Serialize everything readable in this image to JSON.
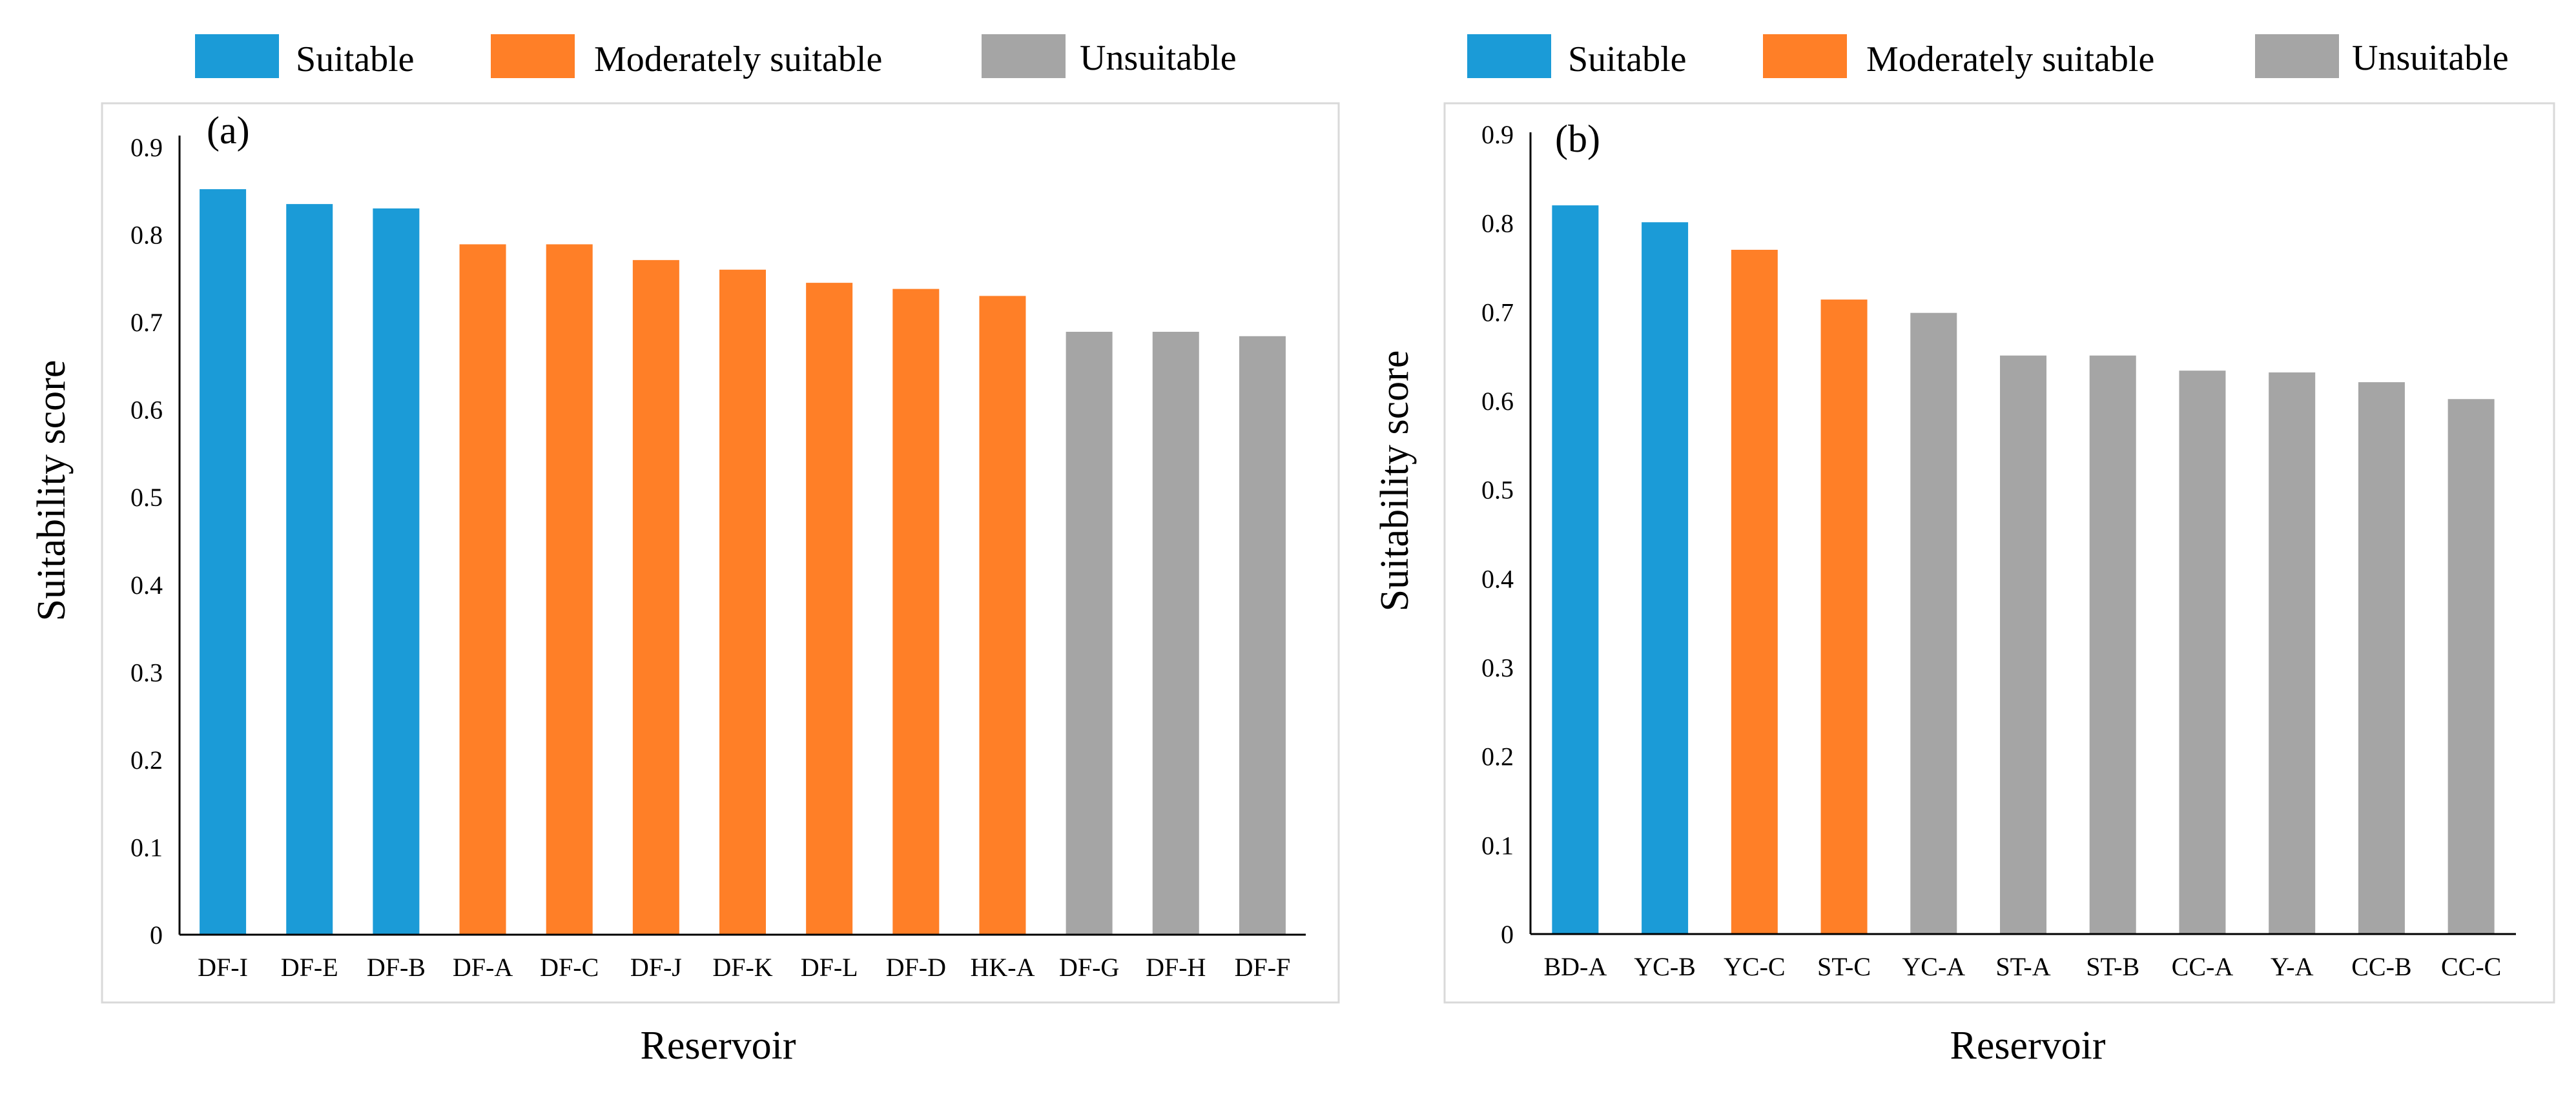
{
  "legend": [
    {
      "key": "suitable",
      "label": "Suitable",
      "color": "#1b9bd7"
    },
    {
      "key": "moderate",
      "label": "Moderately suitable",
      "color": "#ff7f27"
    },
    {
      "key": "unsuitable",
      "label": "Unsuitable",
      "color": "#a5a5a5"
    }
  ],
  "chart_data": [
    {
      "type": "bar",
      "panel": "(a)",
      "xlabel": "Reservoir",
      "ylabel": "Suitability score",
      "ylim": [
        0,
        0.9
      ],
      "yticks": [
        "0",
        "0.1",
        "0.2",
        "0.3",
        "0.4",
        "0.5",
        "0.6",
        "0.7",
        "0.8",
        "0.9"
      ],
      "categories": [
        "DF-I",
        "DF-E",
        "DF-B",
        "DF-A",
        "DF-C",
        "DF-J",
        "DF-K",
        "DF-L",
        "DF-D",
        "HK-A",
        "DF-G",
        "DF-H",
        "DF-F"
      ],
      "values": [
        0.852,
        0.835,
        0.83,
        0.789,
        0.789,
        0.771,
        0.76,
        0.745,
        0.738,
        0.73,
        0.689,
        0.689,
        0.684
      ],
      "classes": [
        "suitable",
        "suitable",
        "suitable",
        "moderate",
        "moderate",
        "moderate",
        "moderate",
        "moderate",
        "moderate",
        "moderate",
        "unsuitable",
        "unsuitable",
        "unsuitable"
      ]
    },
    {
      "type": "bar",
      "panel": "(b)",
      "xlabel": "Reservoir",
      "ylabel": "Suitability score",
      "ylim": [
        0,
        0.9
      ],
      "yticks": [
        "0",
        "0.1",
        "0.2",
        "0.3",
        "0.4",
        "0.5",
        "0.6",
        "0.7",
        "0.8",
        "0.9"
      ],
      "categories": [
        "BD-A",
        "YC-B",
        "YC-C",
        "ST-C",
        "YC-A",
        "ST-A",
        "ST-B",
        "CC-A",
        "Y-A",
        "CC-B",
        "CC-C"
      ],
      "values": [
        0.82,
        0.801,
        0.77,
        0.714,
        0.699,
        0.651,
        0.651,
        0.634,
        0.632,
        0.621,
        0.602
      ],
      "classes": [
        "suitable",
        "suitable",
        "moderate",
        "moderate",
        "unsuitable",
        "unsuitable",
        "unsuitable",
        "unsuitable",
        "unsuitable",
        "unsuitable",
        "unsuitable"
      ]
    }
  ]
}
